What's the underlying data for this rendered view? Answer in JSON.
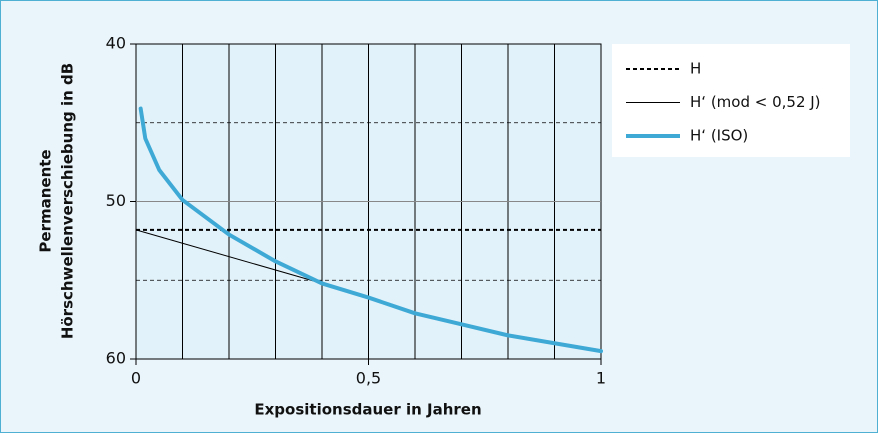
{
  "chart_data": {
    "type": "line",
    "xlabel": "Expositionsdauer in Jahren",
    "ylabel": [
      "Permanente",
      "Hörschwellenverschiebung in dB"
    ],
    "xlim": [
      0,
      1
    ],
    "ylim": [
      60,
      40
    ],
    "y_inverted": true,
    "xticks": [
      0,
      {
        "value": 0.5,
        "label": "0,5"
      },
      1
    ],
    "yticks": [
      40,
      50,
      60
    ],
    "xgrid": [
      0.1,
      0.2,
      0.3,
      0.4,
      0.5,
      0.6,
      0.7,
      0.8,
      0.9
    ],
    "ygrid": [
      50
    ],
    "ygrid_dashed": [
      45,
      55
    ],
    "legend": "upper right",
    "series": [
      {
        "name": "H",
        "color": "#000000",
        "style": "dashed",
        "width": 2,
        "x": [
          0,
          1
        ],
        "values": [
          51.8,
          51.8
        ]
      },
      {
        "name": "H‘ (mod < 0,52 J)",
        "color": "#000000",
        "style": "solid",
        "width": 1,
        "x": [
          0,
          0.4
        ],
        "values": [
          51.8,
          55.2
        ]
      },
      {
        "name": "H‘ (ISO)",
        "color": "#3fa9d6",
        "style": "solid",
        "width": 4,
        "x": [
          0.01,
          0.02,
          0.05,
          0.1,
          0.2,
          0.3,
          0.4,
          0.5,
          0.6,
          0.7,
          0.8,
          0.9,
          1.0
        ],
        "values": [
          44.1,
          46.0,
          48.0,
          49.9,
          52.1,
          53.8,
          55.2,
          56.1,
          57.1,
          57.8,
          58.5,
          59.0,
          59.5
        ]
      }
    ]
  }
}
